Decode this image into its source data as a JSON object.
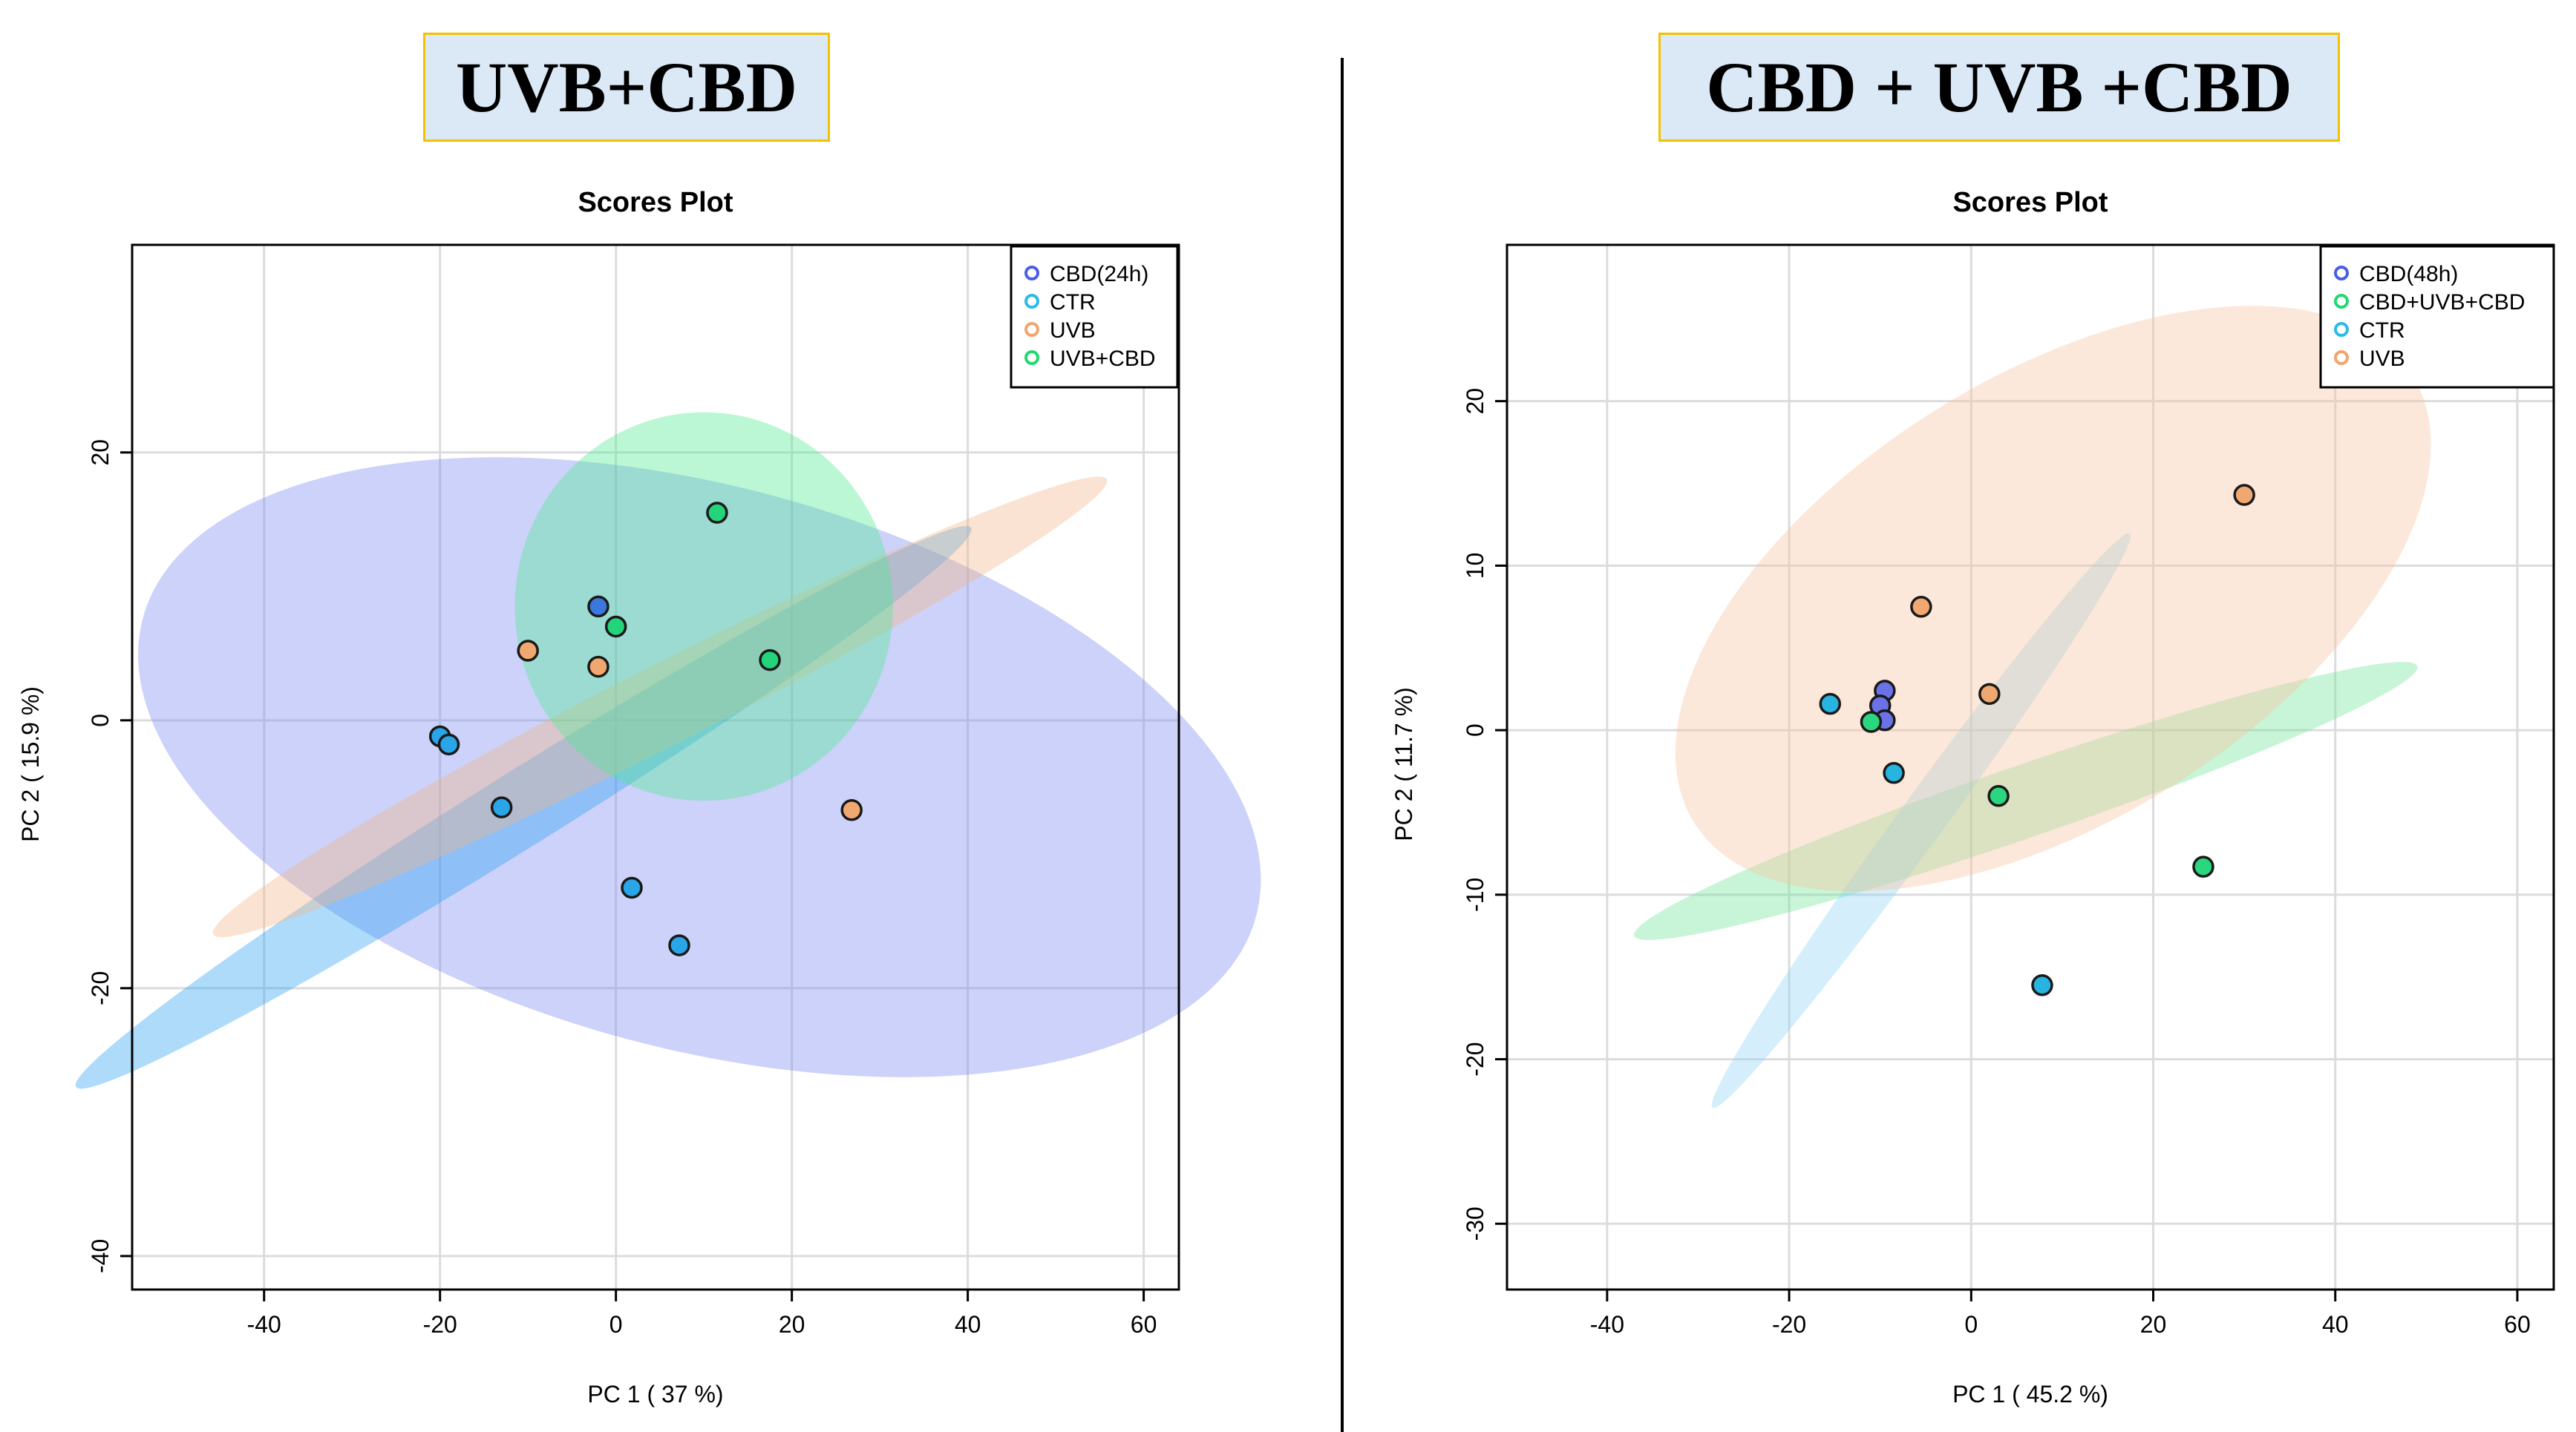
{
  "headers": {
    "left": "UVB+CBD",
    "right": "CBD + UVB +CBD"
  },
  "chart_data": [
    {
      "type": "scatter",
      "title": "Scores Plot",
      "xlabel": "PC 1 ( 37 %)",
      "ylabel": "PC 2 ( 15.9 %)",
      "xlim": [
        -55,
        64
      ],
      "ylim": [
        -42.5,
        35.5
      ],
      "xticks": [
        -40,
        -20,
        0,
        20,
        40,
        60
      ],
      "yticks": [
        -40,
        -20,
        0,
        20
      ],
      "grid": true,
      "legend_position": "top-right",
      "series": [
        {
          "name": "CBD(24h)",
          "color": "#4a5ee6",
          "fill": "#3a78e0",
          "points": [
            [
              -2,
              8.5
            ]
          ],
          "ellipse": {
            "cx": 9.5,
            "cy": -3.5,
            "rx": 32,
            "ry": 43,
            "angle": 75,
            "color": "#7a88f0"
          }
        },
        {
          "name": "CTR",
          "color": "#2bbbe8",
          "fill": "#2aa6e8",
          "points": [
            [
              -20,
              -1.2
            ],
            [
              -19,
              -1.8
            ],
            [
              -13,
              -6.5
            ],
            [
              1.8,
              -12.5
            ],
            [
              7.2,
              -16.8
            ]
          ],
          "ellipse": {
            "cx": -10.5,
            "cy": -6.5,
            "rx": 60,
            "ry": 2.8,
            "angle": 32,
            "color": "#2aa0f2"
          }
        },
        {
          "name": "UVB",
          "color": "#f4a46a",
          "fill": "#f0a870",
          "points": [
            [
              -10,
              5.2
            ],
            [
              -2,
              4
            ],
            [
              26.8,
              -6.7
            ]
          ],
          "ellipse": {
            "cx": 5,
            "cy": 1,
            "rx": 57,
            "ry": 3,
            "angle": 27,
            "color": "#f3b58a"
          }
        },
        {
          "name": "UVB+CBD",
          "color": "#22d870",
          "fill": "#24d47a",
          "points": [
            [
              11.5,
              15.5
            ],
            [
              0,
              7
            ],
            [
              17.5,
              4.5
            ]
          ],
          "ellipse": {
            "cx": 10,
            "cy": 8.5,
            "rx": 21.5,
            "ry": 14.5,
            "angle": 0,
            "color": "#50ea90"
          }
        }
      ]
    },
    {
      "type": "scatter",
      "title": "Scores Plot",
      "xlabel": "PC 1 ( 45.2 %)",
      "ylabel": "PC 2 ( 11.7 %)",
      "xlim": [
        -51,
        64
      ],
      "ylim": [
        -34,
        29.5
      ],
      "xticks": [
        -40,
        -20,
        0,
        20,
        40,
        60
      ],
      "yticks": [
        -30,
        -20,
        -10,
        0,
        10,
        20
      ],
      "grid": true,
      "legend_position": "top-right",
      "series": [
        {
          "name": "CBD(48h)",
          "color": "#4a5ee6",
          "fill": "#6a72e6",
          "points": [
            [
              -9.5,
              2.4
            ],
            [
              -10,
              1.5
            ],
            [
              -9.5,
              0.6
            ]
          ],
          "ellipse": {
            "cx": -9.8,
            "cy": 1.5,
            "rx": 0.6,
            "ry": 1.2,
            "angle": 0,
            "color": "#6a72e6"
          }
        },
        {
          "name": "CBD+UVB+CBD",
          "color": "#22d870",
          "fill": "#2ad77e",
          "points": [
            [
              -11,
              0.5
            ],
            [
              3,
              -4
            ],
            [
              25.5,
              -8.3
            ]
          ],
          "ellipse": {
            "cx": 6,
            "cy": -4.3,
            "rx": 45.5,
            "ry": 2.2,
            "angle": 19,
            "color": "#6ee696"
          }
        },
        {
          "name": "CTR",
          "color": "#2bbbe8",
          "fill": "#28b4e0",
          "points": [
            [
              -15.5,
              1.6
            ],
            [
              -8.5,
              -2.6
            ],
            [
              7.8,
              -15.5
            ]
          ],
          "ellipse": {
            "cx": -5.5,
            "cy": -5.5,
            "rx": 39,
            "ry": 1.4,
            "angle": 54,
            "color": "#8fd4f5"
          }
        },
        {
          "name": "UVB",
          "color": "#f4a46a",
          "fill": "#f0a870",
          "points": [
            [
              -5.5,
              7.5
            ],
            [
              2,
              2.2
            ],
            [
              30,
              14.3
            ]
          ],
          "ellipse": {
            "cx": 9,
            "cy": 8,
            "rx": 46.5,
            "ry": 13.5,
            "angle": 32,
            "color": "#f7c39e"
          }
        }
      ]
    }
  ]
}
